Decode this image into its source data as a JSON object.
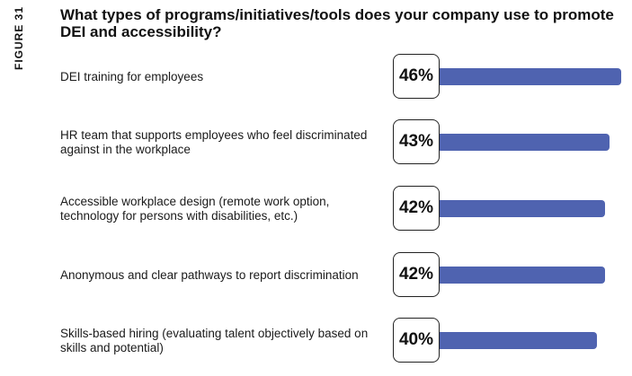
{
  "figure_label": "FIGURE 31",
  "chart_data": {
    "type": "bar",
    "orientation": "horizontal",
    "title": "What types of programs/initiatives/tools does your company use to promote DEI and accessibility?",
    "categories": [
      "DEI training for employees",
      "HR team that supports employees who feel discriminated against in the workplace",
      "Accessible workplace design (remote work option, technology for persons with disabilities, etc.)",
      "Anonymous and clear pathways to report discrimination",
      "Skills-based hiring (evaluating talent objectively based on skills and potential)"
    ],
    "values": [
      46,
      43,
      42,
      42,
      40
    ],
    "value_labels": [
      "46%",
      "43%",
      "42%",
      "42%",
      "40%"
    ],
    "unit": "%",
    "bar_color": "#4f63b0",
    "grid": false,
    "legend": "none"
  }
}
